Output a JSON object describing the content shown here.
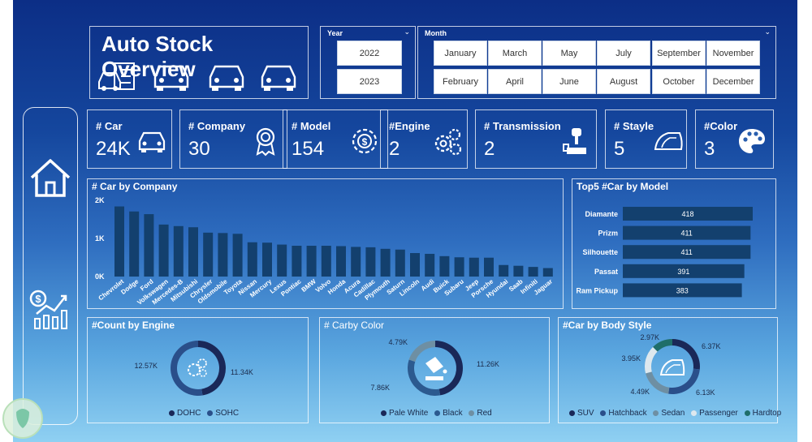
{
  "header": {
    "title": "Auto Stock Overview"
  },
  "year_slicer": {
    "label": "Year",
    "options": [
      "2022",
      "2023"
    ]
  },
  "month_slicer": {
    "label": "Month",
    "options": [
      "January",
      "March",
      "May",
      "July",
      "September",
      "November",
      "February",
      "April",
      "June",
      "August",
      "October",
      "December"
    ]
  },
  "kpis": [
    {
      "label": "# Car",
      "value": "24K",
      "icon": "car-icon"
    },
    {
      "label": "# Company",
      "value": "30",
      "icon": "award-ribbon-icon"
    },
    {
      "label": "# Model",
      "value": "154",
      "icon": "money-gear-icon"
    },
    {
      "label": "#Engine",
      "value": "2",
      "icon": "gears-icon"
    },
    {
      "label": "# Transmission",
      "value": "2",
      "icon": "gear-shift-icon"
    },
    {
      "label": "# Stayle",
      "value": "5",
      "icon": "car-door-icon"
    },
    {
      "label": "#Color",
      "value": "3",
      "icon": "palette-icon"
    }
  ],
  "colors": {
    "bar": "#13406e",
    "donut_dark": "#1a2858",
    "accent_dark": "#0f3e6d",
    "teal": "#1f6e6a",
    "light": "#dde8ee",
    "grey": "#6e8fa3"
  },
  "chart_data": [
    {
      "type": "bar",
      "title": "# Car by Company",
      "categories": [
        "Chevrolet",
        "Dodge",
        "Ford",
        "Volkswagen",
        "Mercedes-B",
        "Mitsubishi",
        "Chrysler",
        "Oldsmobile",
        "Toyota",
        "Nissan",
        "Mercury",
        "Lexus",
        "Pontiac",
        "BMW",
        "Volvo",
        "Honda",
        "Acura",
        "Cadillac",
        "Plymouth",
        "Saturn",
        "Lincoln",
        "Audi",
        "Buick",
        "Subaru",
        "Jeep",
        "Porsche",
        "Hyundai",
        "Saab",
        "Infiniti",
        "Jaguar"
      ],
      "values": [
        1820,
        1690,
        1620,
        1350,
        1310,
        1280,
        1140,
        1130,
        1110,
        890,
        880,
        830,
        800,
        800,
        800,
        790,
        770,
        760,
        720,
        700,
        610,
        590,
        530,
        500,
        490,
        490,
        300,
        280,
        250,
        220
      ],
      "yticks": [
        "0K",
        "1K",
        "2K"
      ],
      "ylim": [
        0,
        2000
      ]
    },
    {
      "type": "bar",
      "orientation": "horizontal",
      "title": "Top5 #Car by Model",
      "categories": [
        "Diamante",
        "Prizm",
        "Silhouette",
        "Passat",
        "Ram Pickup"
      ],
      "values": [
        418,
        411,
        411,
        391,
        383
      ],
      "labels": [
        "418",
        "411",
        "411",
        "391",
        "383"
      ]
    },
    {
      "type": "pie",
      "subtype": "donut",
      "title": "#Count by Engine",
      "series": [
        {
          "name": "DOHC",
          "value": 11340,
          "label": "11.34K",
          "color": "#1a2858"
        },
        {
          "name": "SOHC",
          "value": 12570,
          "label": "12.57K",
          "color": "#2a4f8a"
        }
      ]
    },
    {
      "type": "pie",
      "subtype": "donut",
      "title": "# Carby Color",
      "series": [
        {
          "name": "Pale White",
          "value": 11260,
          "label": "11.26K",
          "color": "#1a2858"
        },
        {
          "name": "Black",
          "value": 7860,
          "label": "7.86K",
          "color": "#2c5a8f"
        },
        {
          "name": "Red",
          "value": 4790,
          "label": "4.79K",
          "color": "#6e8fa3"
        }
      ]
    },
    {
      "type": "pie",
      "subtype": "donut",
      "title": "#Car by Body Style",
      "series": [
        {
          "name": "SUV",
          "value": 6370,
          "label": "6.37K",
          "color": "#1a2858"
        },
        {
          "name": "Hatchback",
          "value": 6130,
          "label": "6.13K",
          "color": "#2a4f8a"
        },
        {
          "name": "Sedan",
          "value": 4490,
          "label": "4.49K",
          "color": "#6e8fa3"
        },
        {
          "name": "Passenger",
          "value": 3950,
          "label": "3.95K",
          "color": "#dde8ee"
        },
        {
          "name": "Hardtop",
          "value": 2970,
          "label": "2.97K",
          "color": "#1f6e6a"
        }
      ]
    }
  ]
}
